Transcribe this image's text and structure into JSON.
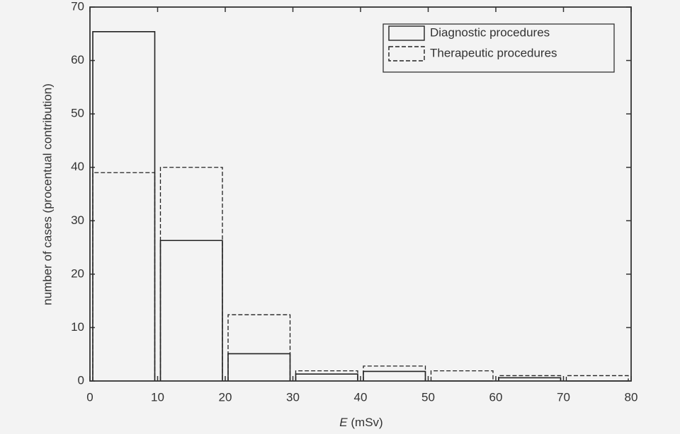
{
  "chart_data": {
    "type": "histogram",
    "xlabel": [
      "E",
      "(mSv)"
    ],
    "ylabel": "number of cases (procentual contribution)",
    "bins": [
      0,
      10,
      20,
      30,
      40,
      50,
      60,
      70,
      80
    ],
    "series": [
      {
        "name": "Diagnostic procedures",
        "color": "#222222",
        "dash": false,
        "values": [
          65.4,
          26.3,
          5.1,
          1.3,
          1.8,
          0,
          0.6,
          0
        ]
      },
      {
        "name": "Therapeutic procedures",
        "color": "#222222",
        "dash": true,
        "values": [
          39,
          40,
          12.4,
          1.9,
          2.8,
          1.9,
          1.0,
          1.0
        ]
      }
    ],
    "xlim": [
      0,
      80
    ],
    "xticks": [
      0,
      10,
      20,
      30,
      40,
      50,
      60,
      70,
      80
    ],
    "ylim": [
      0,
      70
    ],
    "yticks": [
      0,
      10,
      20,
      30,
      40,
      50,
      60,
      70
    ],
    "legend": "upper right"
  }
}
